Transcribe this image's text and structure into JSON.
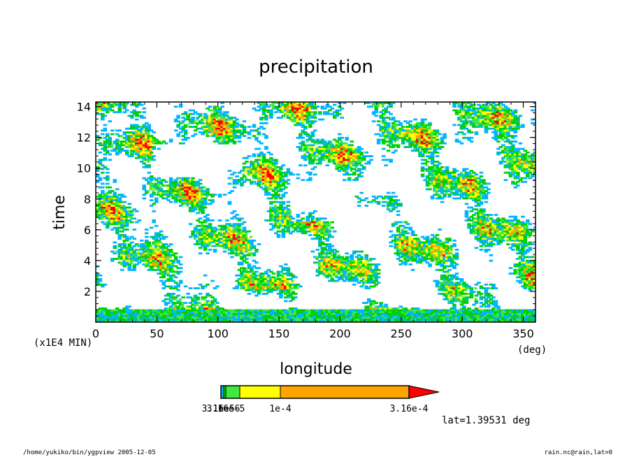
{
  "chart_data": {
    "type": "heatmap",
    "title": "precipitation",
    "xlabel": "longitude",
    "xunit": "(deg)",
    "ylabel": "time",
    "yunit": "(x1E4 MIN)",
    "xlim": [
      0,
      360
    ],
    "ylim": [
      0,
      14.3
    ],
    "x_ticks": [
      "0",
      "50",
      "100",
      "150",
      "200",
      "250",
      "300",
      "350"
    ],
    "y_ticks": [
      "2",
      "4",
      "6",
      "8",
      "10",
      "12",
      "14"
    ],
    "colorbar": {
      "levels": [
        "3.16e-6",
        "1e-5",
        "3.16e-5",
        "1e-4",
        "3.16e-4"
      ],
      "printed_labels": [
        "3.16e-6",
        "1e-5",
        "3.16e-5",
        "1e-4",
        "3.16e-4"
      ],
      "colors": [
        "#00b4ff",
        "#00d000",
        "#40e840",
        "#ffff00",
        "#ffa500",
        "#ff0000"
      ]
    },
    "annotation": "lat=1.39531 deg"
  },
  "footer": {
    "left": "/home/yukiko/bin/ygpview  2005-12-05",
    "right": "rain.nc@rain,lat=0"
  }
}
